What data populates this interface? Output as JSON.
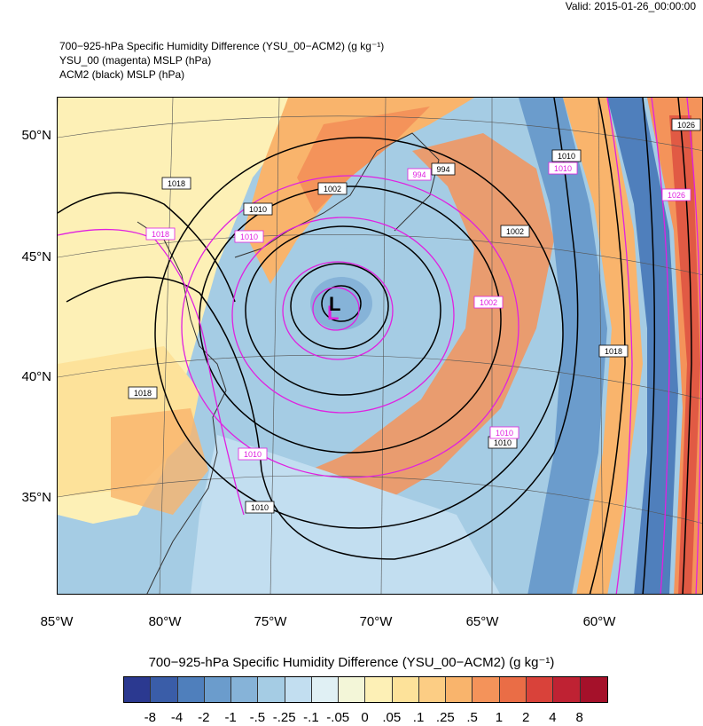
{
  "valid_time": "Valid: 2015-01-26_00:00:00",
  "titles": {
    "line1": "700−925-hPa Specific Humidity Difference (YSU_00−ACM2)   (g kg⁻¹)",
    "line2": "YSU_00 (magenta) MSLP   (hPa)",
    "line3": "ACM2 (black) MSLP   (hPa)"
  },
  "latitude_labels": [
    "50°N",
    "45°N",
    "40°N",
    "35°N"
  ],
  "longitude_labels": [
    "85°W",
    "80°W",
    "75°W",
    "70°W",
    "65°W",
    "60°W"
  ],
  "low_marker": "L",
  "isobar_labels": {
    "black": [
      "1018",
      "1010",
      "1002",
      "994",
      "1002",
      "1010",
      "1026",
      "1018",
      "1010",
      "1010",
      "1018"
    ],
    "magenta": [
      "1018",
      "1010",
      "994",
      "1002",
      "1010",
      "1026",
      "1010",
      "1010"
    ]
  },
  "colorbar": {
    "title": "700−925-hPa Specific Humidity Difference (YSU_00−ACM2)   (g kg⁻¹)",
    "labels": [
      "-8",
      "-4",
      "-2",
      "-1",
      "-.5",
      "-.25",
      "-.1",
      "-.05",
      "0",
      ".05",
      ".1",
      ".25",
      ".5",
      "1",
      "2",
      "4",
      "8"
    ],
    "colors": [
      "#2b3990",
      "#3a5da8",
      "#4f7fbc",
      "#6b9ccc",
      "#86b3d8",
      "#a5cce4",
      "#c2def0",
      "#e0f0f4",
      "#f3f6d8",
      "#fdf0b6",
      "#fde29a",
      "#fccd84",
      "#f9b46c",
      "#f4935a",
      "#ea6d46",
      "#d9423a",
      "#bf2233",
      "#a5112a"
    ]
  }
}
